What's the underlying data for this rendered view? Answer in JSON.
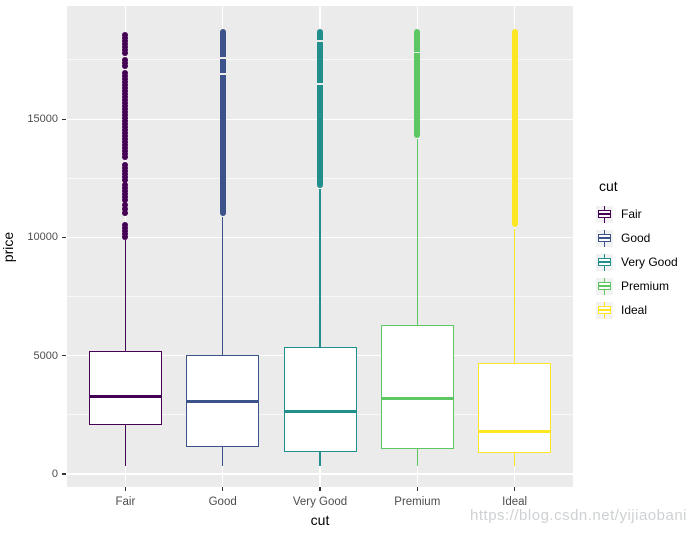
{
  "figure": {
    "panel_bg": "#EBEBEB",
    "grid_color": "#FFFFFF",
    "axis_text_color": "#4D4D4D",
    "legend_key_bg": "#F2F2F2"
  },
  "axes": {
    "x": {
      "title": "cut"
    },
    "y": {
      "title": "price",
      "tick_labels": [
        "0",
        "5000",
        "10000",
        "15000"
      ]
    }
  },
  "legend": {
    "title": "cut",
    "items": [
      {
        "label": "Fair",
        "color": "#440154"
      },
      {
        "label": "Good",
        "color": "#3B528B"
      },
      {
        "label": "Very Good",
        "color": "#21908C"
      },
      {
        "label": "Premium",
        "color": "#5DC863"
      },
      {
        "label": "Ideal",
        "color": "#FDE725"
      }
    ]
  },
  "watermark": "https://blog.csdn.net/yijiaobani",
  "chart_data": {
    "type": "boxplot",
    "title": "",
    "xlabel": "cut",
    "ylabel": "price",
    "categories": [
      "Fair",
      "Good",
      "Very Good",
      "Premium",
      "Ideal"
    ],
    "y_ticks_major": [
      0,
      5000,
      10000,
      15000
    ],
    "y_ticks_minor": [
      2500,
      7500,
      12500,
      17500
    ],
    "ylim": [
      -550,
      19700
    ],
    "grid": true,
    "legend_position": "right",
    "series": [
      {
        "name": "Fair",
        "color": "#440154",
        "min": 337,
        "q1": 2050,
        "median": 3282,
        "q3": 5206,
        "upper_whisker": 9900,
        "max_outlier": 18574,
        "outlier_points": [
          18546,
          18419,
          18292,
          18165,
          18039,
          17912,
          17785,
          17489,
          17362,
          17236,
          16940,
          16813,
          16687,
          16560,
          16433,
          16306,
          16180,
          16053,
          15926,
          15800,
          15673,
          15546,
          15419,
          15293,
          15166,
          15039,
          14913,
          14786,
          14659,
          14532,
          14406,
          14279,
          14152,
          14026,
          13899,
          13772,
          13645,
          13519,
          13392,
          13054,
          12927,
          12800,
          12674,
          12547,
          12420,
          12209,
          12082,
          11956,
          11829,
          11702,
          11575,
          11364,
          11195,
          11026,
          10519,
          10392,
          10265,
          10138,
          10011
        ]
      },
      {
        "name": "Good",
        "color": "#3B528B",
        "min": 327,
        "q1": 1145,
        "median": 3050,
        "q3": 5028,
        "upper_whisker": 10860,
        "max_outlier": 18788,
        "outlier_range": [
          10900,
          18788
        ],
        "outlier_gaps": [
          17620,
          16950
        ]
      },
      {
        "name": "Very Good",
        "color": "#21908C",
        "min": 336,
        "q1": 912,
        "median": 2648,
        "q3": 5373,
        "upper_whisker": 12050,
        "max_outlier": 18818,
        "outlier_range": [
          12100,
          18818
        ],
        "outlier_gaps": [
          18330,
          16510
        ]
      },
      {
        "name": "Premium",
        "color": "#5DC863",
        "min": 326,
        "q1": 1046,
        "median": 3185,
        "q3": 6296,
        "upper_whisker": 14160,
        "max_outlier": 18823,
        "outlier_range": [
          14220,
          18823
        ],
        "outlier_gaps": [
          17840
        ]
      },
      {
        "name": "Ideal",
        "color": "#FDE725",
        "min": 326,
        "q1": 878,
        "median": 1810,
        "q3": 4679,
        "upper_whisker": 10370,
        "max_outlier": 18806,
        "outlier_range": [
          10430,
          18806
        ],
        "outlier_gaps": []
      }
    ]
  }
}
